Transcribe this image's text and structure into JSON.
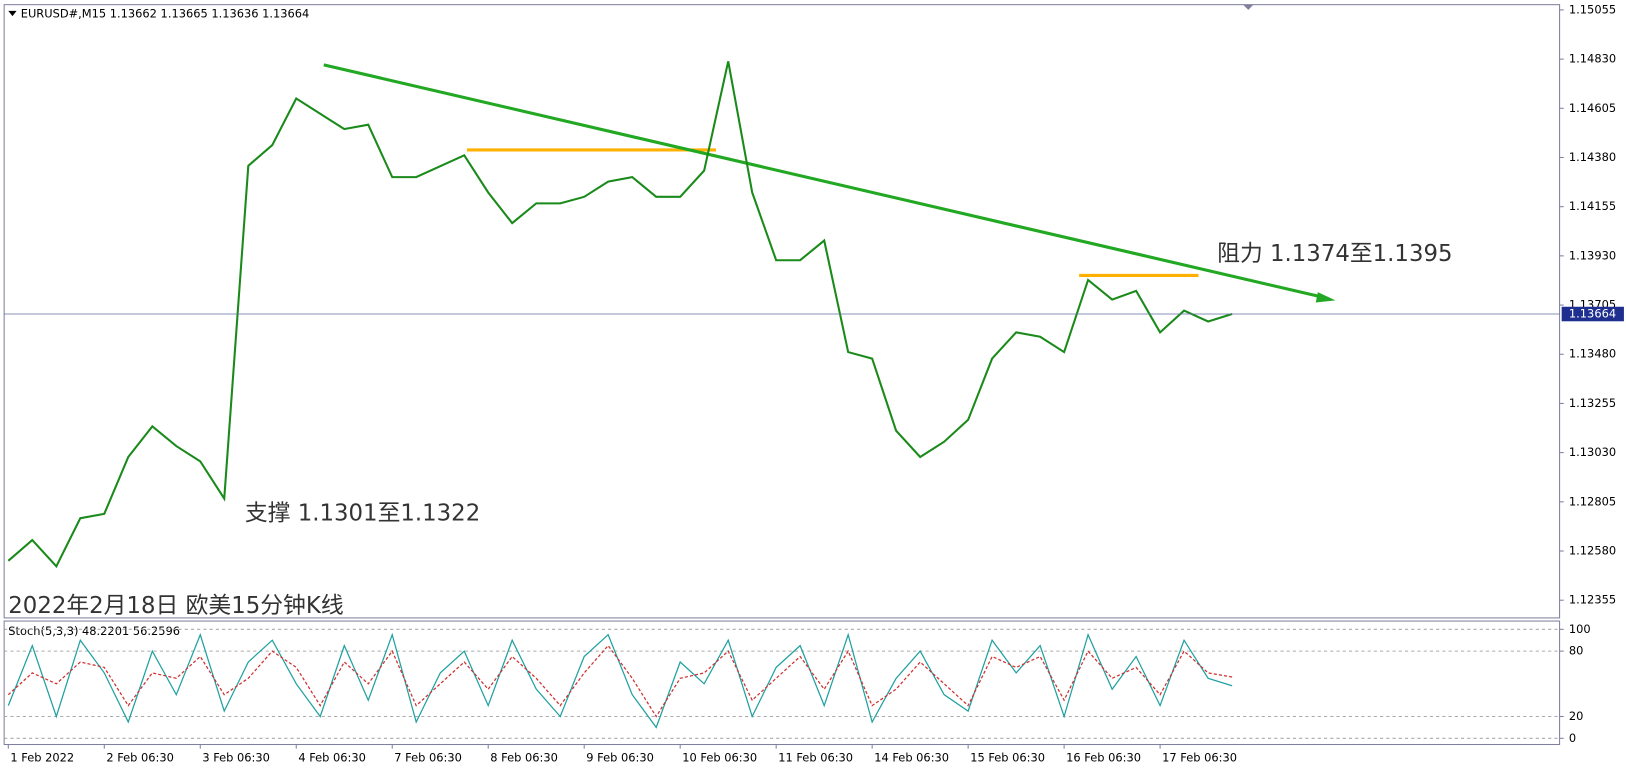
{
  "chart_data": [
    {
      "type": "line",
      "title": "EURUSD#,M15  1.13662 1.13665 1.13636 1.13664",
      "categories": [
        "1 Feb 2022",
        null,
        null,
        null,
        "2 Feb 06:30",
        null,
        null,
        null,
        "3 Feb 06:30",
        null,
        null,
        null,
        "4 Feb 06:30",
        null,
        null,
        null,
        "7 Feb 06:30",
        null,
        null,
        null,
        "8 Feb 06:30",
        null,
        null,
        null,
        "9 Feb 06:30",
        null,
        null,
        null,
        "10 Feb 06:30",
        null,
        null,
        null,
        "11 Feb 06:30",
        null,
        null,
        null,
        "14 Feb 06:30",
        null,
        null,
        null,
        "15 Feb 06:30",
        null,
        null,
        null,
        "16 Feb 06:30",
        null,
        null,
        null,
        "17 Feb 06:30",
        null,
        null,
        null
      ],
      "series": [
        {
          "color": "#1a8a1a",
          "values": [
            1.12535,
            1.1263,
            1.1251,
            1.1273,
            1.1275,
            1.1301,
            1.1315,
            1.1306,
            1.1299,
            1.1282,
            1.14342,
            1.14437,
            1.1465,
            1.1458,
            1.1451,
            1.1453,
            1.1429,
            1.1429,
            1.1434,
            1.1439,
            1.1422,
            1.1408,
            1.1417,
            1.1417,
            1.142,
            1.1427,
            1.1429,
            1.142,
            1.142,
            1.1432,
            1.1482,
            1.1422,
            1.1391,
            1.1391,
            1.14,
            1.1349,
            1.1346,
            1.1313,
            1.1301,
            1.1308,
            1.1318,
            1.1346,
            1.1358,
            1.1356,
            1.1349,
            1.1382,
            1.1373,
            1.1377,
            1.1358,
            1.1368,
            1.1363,
            1.13664
          ]
        }
      ],
      "ylim": [
        1.12274,
        1.15079
      ],
      "yticks": [
        1.15055,
        {
          "value": 1.1483,
          "label": "1.14830"
        },
        1.14605,
        {
          "value": 1.1438,
          "label": "1.14380"
        },
        1.14155,
        {
          "value": 1.1393,
          "label": "1.13930"
        },
        1.13705,
        {
          "value": 1.1348,
          "label": "1.13480"
        },
        1.13255,
        {
          "value": 1.1303,
          "label": "1.13030"
        },
        1.12805,
        {
          "value": 1.1258,
          "label": "1.12580"
        },
        1.12355
      ],
      "last_price": 1.13664,
      "grid": false,
      "annotations": [
        "阻力 1.1374至1.1395",
        "支撑 1.1301至1.1322",
        "2022年2月18日 欧美15分钟K线"
      ]
    },
    {
      "type": "line",
      "title": "Stoch(5,3,3) 48.2201 56.2596",
      "series": [
        {
          "color": "#20a0a0",
          "values": [
            30,
            85,
            20,
            90,
            60,
            15,
            80,
            40,
            95,
            25,
            70,
            90,
            50,
            20,
            85,
            35,
            95,
            15,
            60,
            80,
            30,
            90,
            45,
            20,
            75,
            95,
            40,
            10,
            70,
            50,
            90,
            20,
            65,
            85,
            30,
            95,
            15,
            55,
            80,
            40,
            25,
            90,
            60,
            85,
            20,
            95,
            45,
            75,
            30,
            90,
            55,
            48.2201
          ]
        },
        {
          "color": "#d03030",
          "dashed": true,
          "values": [
            40,
            60,
            50,
            70,
            65,
            30,
            60,
            55,
            75,
            40,
            55,
            80,
            65,
            30,
            70,
            50,
            80,
            30,
            50,
            70,
            45,
            75,
            55,
            30,
            60,
            85,
            55,
            20,
            55,
            60,
            80,
            35,
            55,
            75,
            45,
            80,
            30,
            45,
            70,
            50,
            30,
            75,
            65,
            75,
            35,
            80,
            55,
            65,
            40,
            80,
            60,
            56.2596
          ]
        }
      ],
      "ylim": [
        -5.7,
        107.6
      ],
      "yticks": [
        100,
        80,
        20,
        0
      ],
      "grid": true
    }
  ]
}
